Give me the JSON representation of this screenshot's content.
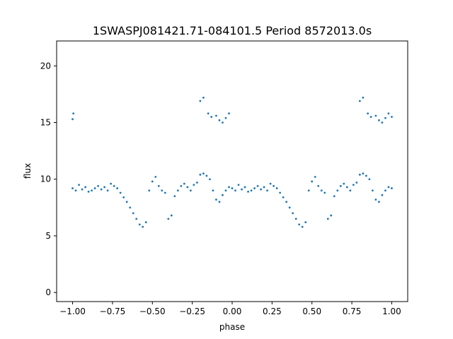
{
  "chart_data": {
    "type": "scatter",
    "title": "1SWASPJ081421.71-084101.5 Period 8572013.0s",
    "xlabel": "phase",
    "ylabel": "flux",
    "xlim": [
      -1.1,
      1.1
    ],
    "ylim": [
      -0.8,
      22.2
    ],
    "grid": false,
    "legend": "none",
    "x_ticks": [
      {
        "value": -1.0,
        "label": "−1.00"
      },
      {
        "value": -0.75,
        "label": "−0.75"
      },
      {
        "value": -0.5,
        "label": "−0.50"
      },
      {
        "value": -0.25,
        "label": "−0.25"
      },
      {
        "value": 0.0,
        "label": "0.00"
      },
      {
        "value": 0.25,
        "label": "0.25"
      },
      {
        "value": 0.5,
        "label": "0.50"
      },
      {
        "value": 0.75,
        "label": "0.75"
      },
      {
        "value": 1.0,
        "label": "1.00"
      }
    ],
    "y_ticks": [
      {
        "value": 0,
        "label": "0"
      },
      {
        "value": 5,
        "label": "5"
      },
      {
        "value": 10,
        "label": "10"
      },
      {
        "value": 15,
        "label": "15"
      },
      {
        "value": 20,
        "label": "20"
      }
    ],
    "point_color": "#1f77b4",
    "series": [
      {
        "x": [
          -1.0,
          -0.98,
          -0.96,
          -0.94,
          -0.92,
          -0.9,
          -0.88,
          -0.86,
          -0.84,
          -0.82,
          -0.8,
          -0.78,
          -0.76,
          -0.74,
          -0.72,
          -0.7,
          -0.68,
          -0.66,
          -0.64,
          -0.62,
          -0.6,
          -0.58,
          -0.56,
          -0.54,
          -0.52,
          -0.5,
          -0.48,
          -0.46,
          -0.44,
          -0.42,
          -0.4,
          -0.38,
          -0.36,
          -0.34,
          -0.32,
          -0.3,
          -0.28,
          -0.26,
          -0.24,
          -0.22,
          -0.2,
          -0.18,
          -0.16,
          -0.14,
          -0.12,
          -0.1,
          -0.08,
          -0.06,
          -0.04,
          -0.02,
          0.0,
          0.02,
          0.04,
          0.06,
          0.08,
          0.1,
          0.12,
          0.14,
          0.16,
          0.18,
          0.2,
          0.22,
          0.24,
          0.26,
          0.28,
          0.3,
          0.32,
          0.34,
          0.36,
          0.38,
          0.4,
          0.42,
          0.44,
          0.46,
          0.48,
          0.5,
          0.52,
          0.54,
          0.56,
          0.58,
          0.6,
          0.62,
          0.64,
          0.66,
          0.68,
          0.7,
          0.72,
          0.74,
          0.76,
          0.78,
          0.8,
          0.82,
          0.84,
          0.86,
          0.88,
          0.9,
          0.92,
          0.94,
          0.96,
          0.98,
          1.0
        ],
        "y": [
          9.2,
          9.0,
          9.5,
          9.1,
          9.3,
          8.9,
          9.0,
          9.2,
          9.4,
          9.1,
          9.3,
          9.0,
          9.6,
          9.4,
          9.2,
          8.8,
          8.4,
          8.0,
          7.5,
          7.0,
          6.5,
          6.0,
          5.8,
          6.2,
          9.0,
          9.8,
          10.2,
          9.4,
          9.0,
          8.8,
          6.5,
          6.8,
          8.5,
          9.0,
          9.4,
          9.6,
          9.3,
          9.0,
          9.5,
          9.7,
          10.4,
          10.5,
          10.3,
          10.0,
          9.0,
          8.2,
          8.0,
          8.6,
          9.0,
          9.3,
          9.2,
          9.0,
          9.5,
          9.1,
          9.3,
          8.9,
          9.0,
          9.2,
          9.4,
          9.1,
          9.3,
          9.0,
          9.6,
          9.4,
          9.2,
          8.8,
          8.4,
          8.0,
          7.5,
          7.0,
          6.5,
          6.0,
          5.8,
          6.2,
          9.0,
          9.8,
          10.2,
          9.4,
          9.0,
          8.8,
          6.5,
          6.8,
          8.5,
          9.0,
          9.4,
          9.6,
          9.3,
          9.0,
          9.5,
          9.7,
          10.4,
          10.5,
          10.3,
          10.0,
          9.0,
          8.2,
          8.0,
          8.6,
          9.0,
          9.3,
          9.2
        ]
      },
      {
        "x": [
          -1.0,
          -0.995,
          -0.2,
          -0.18,
          -0.15,
          -0.13,
          -0.1,
          -0.08,
          -0.06,
          -0.04,
          -0.02,
          0.8,
          0.82,
          0.85,
          0.87,
          0.9,
          0.92,
          0.94,
          0.96,
          0.98,
          1.0
        ],
        "y": [
          15.3,
          15.8,
          16.9,
          17.2,
          15.8,
          15.5,
          15.6,
          15.2,
          15.0,
          15.4,
          15.8,
          16.9,
          17.2,
          15.8,
          15.5,
          15.6,
          15.2,
          15.0,
          15.4,
          15.8,
          15.5
        ]
      }
    ]
  }
}
